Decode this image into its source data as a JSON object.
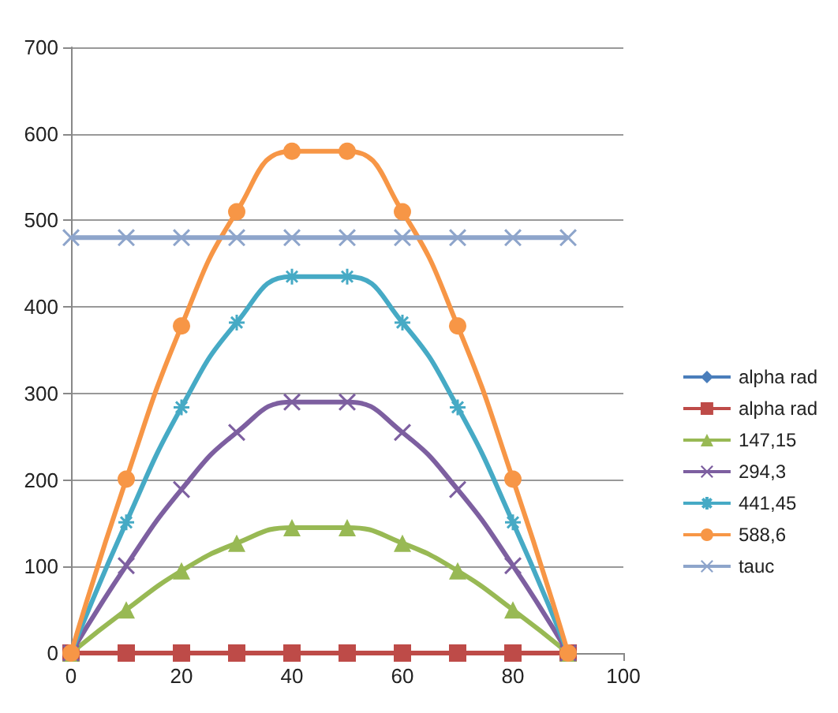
{
  "chart_data": {
    "type": "line",
    "x": [
      0,
      10,
      20,
      30,
      40,
      50,
      60,
      70,
      80,
      90
    ],
    "series": [
      {
        "name": "alpha rad",
        "color": "#4a7ebb",
        "marker": "diamond",
        "values": [
          null,
          null,
          null,
          null,
          null,
          null,
          null,
          null,
          null,
          null
        ]
      },
      {
        "name": "alpha rad",
        "color": "#be4b48",
        "marker": "square",
        "values": [
          0,
          0,
          0,
          0,
          0,
          0,
          0,
          0,
          0,
          0
        ]
      },
      {
        "name": "147,15",
        "color": "#98b954",
        "marker": "triangle",
        "values": [
          0,
          50,
          95,
          127,
          145,
          145,
          127,
          95,
          50,
          0
        ]
      },
      {
        "name": "294,3",
        "color": "#7d5fa0",
        "marker": "cross",
        "values": [
          0,
          101,
          189,
          255,
          290,
          290,
          255,
          189,
          101,
          0
        ]
      },
      {
        "name": "441,45",
        "color": "#46aac5",
        "marker": "star",
        "values": [
          0,
          151,
          284,
          382,
          435,
          435,
          382,
          284,
          151,
          0
        ]
      },
      {
        "name": "588,6",
        "color": "#f79646",
        "marker": "circle",
        "values": [
          0,
          201,
          378,
          510,
          580,
          580,
          510,
          378,
          201,
          0
        ]
      },
      {
        "name": "tauc",
        "color": "#8ea5cb",
        "marker": "cross",
        "values": [
          480,
          480,
          480,
          480,
          480,
          480,
          480,
          480,
          480,
          480
        ]
      }
    ],
    "xlim": [
      0,
      100
    ],
    "xticks": [
      0,
      20,
      40,
      60,
      80,
      100
    ],
    "ylim": [
      0,
      700
    ],
    "yticks": [
      0,
      100,
      200,
      300,
      400,
      500,
      600,
      700
    ],
    "grid": "y",
    "legend": "right"
  }
}
